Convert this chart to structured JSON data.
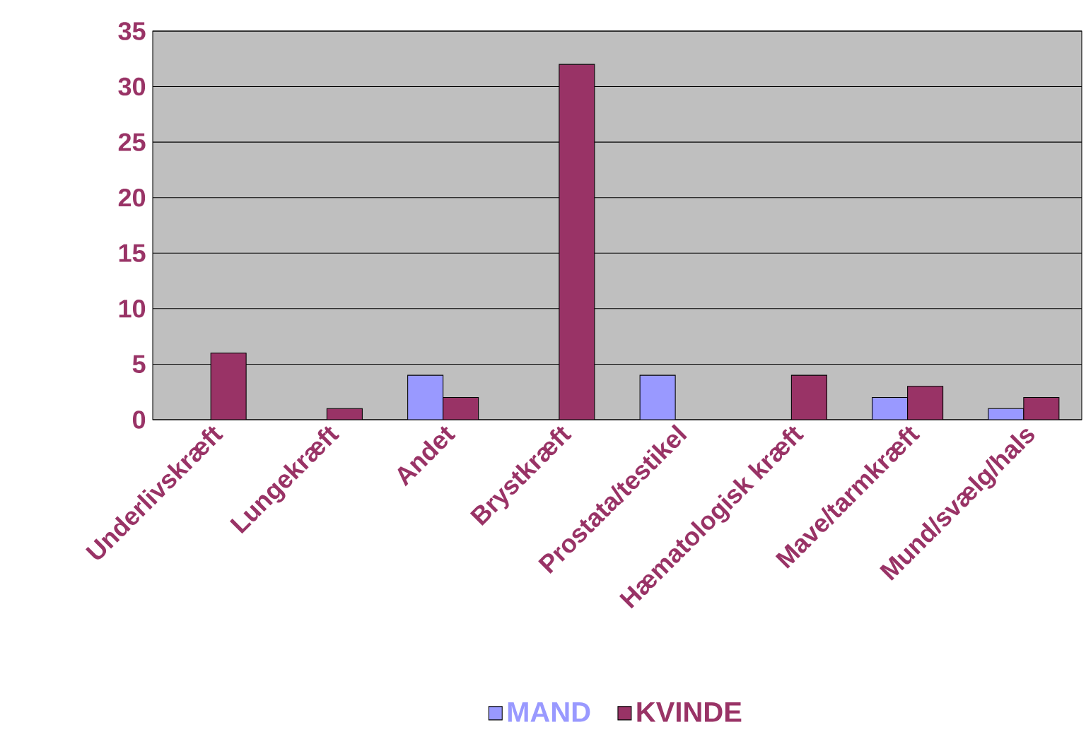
{
  "chart_data": {
    "type": "bar",
    "categories": [
      "Underlivskræft",
      "Lungekræft",
      "Andet",
      "Brystkræft",
      "Prostata/testikel",
      "Hæmatologisk kræft",
      "Mave/tarmkræft",
      "Mund/svælg/hals"
    ],
    "series": [
      {
        "name": "MAND",
        "color": "#9999ff",
        "values": [
          null,
          null,
          4,
          null,
          4,
          null,
          2,
          1
        ]
      },
      {
        "name": "KVINDE",
        "color": "#993366",
        "values": [
          6,
          1,
          2,
          32,
          null,
          4,
          3,
          2
        ]
      }
    ],
    "ylim": [
      0,
      35
    ],
    "yticks": [
      0,
      5,
      10,
      15,
      20,
      25,
      30,
      35
    ],
    "grid": "y",
    "legend": "bottom"
  }
}
